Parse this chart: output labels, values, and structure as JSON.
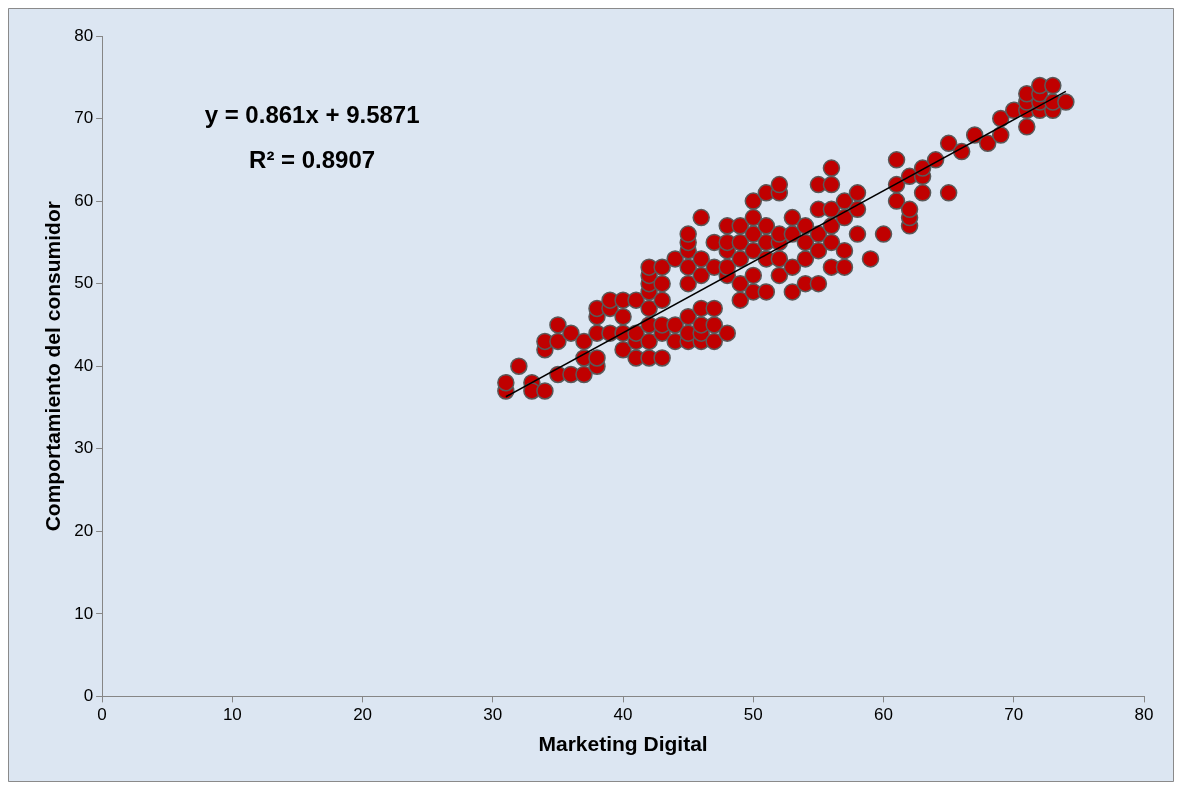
{
  "chart_data": {
    "type": "scatter",
    "xlabel": "Marketing Digital",
    "ylabel": "Comportamiento del consumidor",
    "annotations": [
      "y = 0.861x + 9.5871",
      "R² = 0.8907"
    ],
    "xlim": [
      0,
      80
    ],
    "xticks": [
      0,
      10,
      20,
      30,
      40,
      50,
      60,
      70,
      80
    ],
    "ylim": [
      0,
      80
    ],
    "yticks": [
      0,
      10,
      20,
      30,
      40,
      50,
      60,
      70,
      80
    ],
    "grid": false,
    "legend": false,
    "marker": "circle",
    "series": [
      {
        "color": "#c00000",
        "x": [
          31,
          31,
          32,
          33,
          33,
          34,
          34,
          34,
          35,
          35,
          35,
          36,
          36,
          37,
          37,
          37,
          38,
          38,
          38,
          38,
          38,
          39,
          39,
          39,
          40,
          40,
          40,
          40,
          41,
          41,
          41,
          41,
          42,
          42,
          42,
          42,
          42,
          42,
          42,
          42,
          43,
          43,
          43,
          43,
          43,
          43,
          44,
          44,
          44,
          45,
          45,
          45,
          45,
          45,
          45,
          45,
          45,
          46,
          46,
          46,
          46,
          46,
          46,
          46,
          47,
          47,
          47,
          47,
          47,
          48,
          48,
          48,
          48,
          48,
          48,
          49,
          49,
          49,
          49,
          49,
          50,
          50,
          50,
          50,
          50,
          50,
          51,
          51,
          51,
          51,
          51,
          52,
          52,
          52,
          52,
          52,
          52,
          53,
          53,
          53,
          53,
          54,
          54,
          54,
          54,
          55,
          55,
          55,
          55,
          55,
          56,
          56,
          56,
          56,
          56,
          56,
          57,
          57,
          57,
          57,
          58,
          58,
          58,
          59,
          60,
          61,
          61,
          61,
          62,
          62,
          62,
          62,
          63,
          63,
          63,
          64,
          65,
          65,
          66,
          67,
          68,
          69,
          69,
          70,
          71,
          71,
          71,
          71,
          72,
          72,
          72,
          72,
          73,
          73,
          73,
          74
        ],
        "values": [
          37,
          38,
          40,
          38,
          37,
          37,
          42,
          43,
          45,
          43,
          39,
          39,
          44,
          39,
          41,
          43,
          40,
          41,
          44,
          46,
          47,
          44,
          47,
          48,
          42,
          44,
          46,
          48,
          41,
          43,
          44,
          48,
          41,
          43,
          45,
          47,
          49,
          50,
          51,
          52,
          41,
          44,
          45,
          48,
          50,
          52,
          43,
          45,
          53,
          43,
          44,
          46,
          50,
          52,
          54,
          55,
          56,
          43,
          44,
          45,
          47,
          51,
          53,
          58,
          43,
          45,
          47,
          52,
          55,
          44,
          51,
          52,
          54,
          55,
          57,
          48,
          50,
          53,
          55,
          57,
          49,
          51,
          54,
          56,
          58,
          60,
          49,
          53,
          55,
          57,
          61,
          51,
          53,
          55,
          56,
          61,
          62,
          49,
          52,
          56,
          58,
          50,
          53,
          55,
          57,
          50,
          54,
          56,
          59,
          62,
          52,
          55,
          57,
          59,
          62,
          64,
          52,
          54,
          58,
          60,
          56,
          59,
          61,
          53,
          56,
          60,
          62,
          65,
          57,
          58,
          59,
          63,
          61,
          63,
          64,
          65,
          61,
          67,
          66,
          68,
          67,
          68,
          70,
          71,
          69,
          71,
          72,
          73,
          71,
          72,
          73,
          74,
          71,
          72,
          74,
          72
        ]
      },
      {
        "type": "line",
        "color": "#000000",
        "x": [
          31,
          74
        ],
        "values": [
          36.3,
          73.3
        ],
        "marker": "none",
        "line_style": "solid"
      }
    ]
  }
}
